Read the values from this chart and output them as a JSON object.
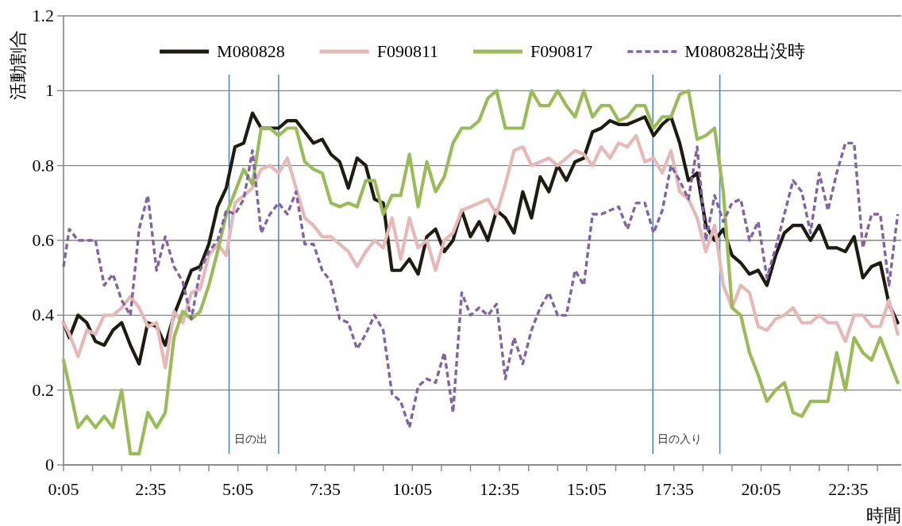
{
  "chart_data": {
    "type": "line",
    "ylabel": "活動割合",
    "xlabel": "時間",
    "grid": "y",
    "legend": "top",
    "marker": "none",
    "xlim": [
      0.0833,
      24.1
    ],
    "ylim": [
      0,
      1.2
    ],
    "yticks": [
      0,
      0.2,
      0.4,
      0.6,
      0.8,
      1,
      1.2
    ],
    "xticks": [
      {
        "value": 0.0833,
        "label": "0:05"
      },
      {
        "value": 0.9167,
        "label": null
      },
      {
        "value": 1.75,
        "label": null
      },
      {
        "value": 2.5833,
        "label": "2:35"
      },
      {
        "value": 3.4167,
        "label": null
      },
      {
        "value": 4.25,
        "label": null
      },
      {
        "value": 5.0833,
        "label": "5:05"
      },
      {
        "value": 5.9167,
        "label": null
      },
      {
        "value": 6.75,
        "label": null
      },
      {
        "value": 7.5833,
        "label": "7:35"
      },
      {
        "value": 8.4167,
        "label": null
      },
      {
        "value": 9.25,
        "label": null
      },
      {
        "value": 10.0833,
        "label": "10:05"
      },
      {
        "value": 10.9167,
        "label": null
      },
      {
        "value": 11.75,
        "label": null
      },
      {
        "value": 12.5833,
        "label": "12:35"
      },
      {
        "value": 13.4167,
        "label": null
      },
      {
        "value": 14.25,
        "label": null
      },
      {
        "value": 15.0833,
        "label": "15:05"
      },
      {
        "value": 15.9167,
        "label": null
      },
      {
        "value": 16.75,
        "label": null
      },
      {
        "value": 17.5833,
        "label": "17:35"
      },
      {
        "value": 18.4167,
        "label": null
      },
      {
        "value": 19.25,
        "label": null
      },
      {
        "value": 20.0833,
        "label": "20:05"
      },
      {
        "value": 20.9167,
        "label": null
      },
      {
        "value": 21.75,
        "label": null
      },
      {
        "value": 22.5833,
        "label": "22:35"
      },
      {
        "value": 23.4167,
        "label": null
      }
    ],
    "x": [
      0.0833,
      0.25,
      0.5,
      0.75,
      1,
      1.25,
      1.5,
      1.75,
      2,
      2.25,
      2.5,
      2.75,
      3,
      3.25,
      3.5,
      3.75,
      4,
      4.25,
      4.5,
      4.75,
      5,
      5.25,
      5.5,
      5.75,
      6,
      6.25,
      6.5,
      6.75,
      7,
      7.25,
      7.5,
      7.75,
      8,
      8.25,
      8.5,
      8.75,
      9,
      9.25,
      9.5,
      9.75,
      10,
      10.25,
      10.5,
      10.75,
      11,
      11.25,
      11.5,
      11.75,
      12,
      12.25,
      12.5,
      12.75,
      13,
      13.25,
      13.5,
      13.75,
      14,
      14.25,
      14.5,
      14.75,
      15,
      15.25,
      15.5,
      15.75,
      16,
      16.25,
      16.5,
      16.75,
      17,
      17.25,
      17.5,
      17.75,
      18,
      18.25,
      18.5,
      18.75,
      19,
      19.25,
      19.5,
      19.75,
      20,
      20.25,
      20.5,
      20.75,
      21,
      21.25,
      21.5,
      21.75,
      22,
      22.25,
      22.5,
      22.75,
      23,
      23.25,
      23.5,
      23.75,
      24
    ],
    "series": [
      {
        "name": "M080828",
        "color": "#1e1b10",
        "values": [
          0.38,
          0.34,
          0.4,
          0.38,
          0.33,
          0.32,
          0.36,
          0.38,
          0.32,
          0.27,
          0.38,
          0.37,
          0.32,
          0.4,
          0.46,
          0.52,
          0.53,
          0.59,
          0.69,
          0.74,
          0.85,
          0.86,
          0.94,
          0.9,
          0.9,
          0.9,
          0.92,
          0.92,
          0.89,
          0.86,
          0.87,
          0.83,
          0.81,
          0.74,
          0.82,
          0.8,
          0.71,
          0.7,
          0.52,
          0.52,
          0.55,
          0.51,
          0.61,
          0.63,
          0.57,
          0.6,
          0.68,
          0.61,
          0.65,
          0.6,
          0.68,
          0.66,
          0.62,
          0.73,
          0.66,
          0.77,
          0.73,
          0.8,
          0.76,
          0.81,
          0.82,
          0.89,
          0.9,
          0.92,
          0.91,
          0.91,
          0.92,
          0.93,
          0.88,
          0.91,
          0.93,
          0.86,
          0.76,
          0.78,
          0.64,
          0.6,
          0.63,
          0.56,
          0.54,
          0.51,
          0.52,
          0.48,
          0.56,
          0.62,
          0.64,
          0.64,
          0.6,
          0.64,
          0.58,
          0.58,
          0.57,
          0.61,
          0.5,
          0.53,
          0.54,
          0.43,
          0.38
        ]
      },
      {
        "name": "F090811",
        "color": "#e6b8b7",
        "values": [
          0.38,
          0.35,
          0.29,
          0.36,
          0.35,
          0.4,
          0.4,
          0.42,
          0.45,
          0.42,
          0.37,
          0.38,
          0.26,
          0.41,
          0.38,
          0.46,
          0.47,
          0.56,
          0.59,
          0.56,
          0.7,
          0.72,
          0.74,
          0.79,
          0.8,
          0.78,
          0.82,
          0.74,
          0.66,
          0.64,
          0.61,
          0.61,
          0.59,
          0.57,
          0.53,
          0.57,
          0.6,
          0.58,
          0.66,
          0.55,
          0.66,
          0.58,
          0.6,
          0.52,
          0.6,
          0.62,
          0.68,
          0.69,
          0.7,
          0.71,
          0.67,
          0.75,
          0.84,
          0.85,
          0.8,
          0.81,
          0.82,
          0.8,
          0.82,
          0.84,
          0.83,
          0.8,
          0.85,
          0.82,
          0.86,
          0.85,
          0.88,
          0.81,
          0.82,
          0.78,
          0.84,
          0.73,
          0.71,
          0.66,
          0.57,
          0.64,
          0.48,
          0.42,
          0.48,
          0.46,
          0.37,
          0.36,
          0.39,
          0.4,
          0.42,
          0.38,
          0.38,
          0.4,
          0.38,
          0.38,
          0.33,
          0.4,
          0.4,
          0.37,
          0.37,
          0.44,
          0.35
        ]
      },
      {
        "name": "F090817",
        "color": "#9bbb59",
        "values": [
          0.28,
          0.21,
          0.1,
          0.13,
          0.1,
          0.13,
          0.1,
          0.2,
          0.03,
          0.03,
          0.14,
          0.1,
          0.14,
          0.34,
          0.41,
          0.39,
          0.41,
          0.48,
          0.57,
          0.67,
          0.73,
          0.79,
          0.75,
          0.9,
          0.9,
          0.88,
          0.9,
          0.9,
          0.81,
          0.79,
          0.78,
          0.7,
          0.69,
          0.7,
          0.69,
          0.76,
          0.76,
          0.67,
          0.72,
          0.72,
          0.83,
          0.69,
          0.81,
          0.73,
          0.77,
          0.86,
          0.9,
          0.9,
          0.92,
          0.98,
          1.0,
          0.9,
          0.9,
          0.9,
          1.0,
          0.96,
          0.96,
          1.0,
          0.96,
          0.93,
          1.0,
          0.93,
          0.96,
          0.96,
          0.92,
          0.93,
          0.96,
          0.96,
          0.9,
          0.93,
          0.93,
          0.99,
          1.0,
          0.87,
          0.88,
          0.9,
          0.73,
          0.42,
          0.4,
          0.3,
          0.24,
          0.17,
          0.2,
          0.22,
          0.14,
          0.13,
          0.17,
          0.17,
          0.17,
          0.3,
          0.2,
          0.34,
          0.3,
          0.28,
          0.34,
          0.28,
          0.22
        ]
      },
      {
        "name": "M080828出没時",
        "color": "#8064a2",
        "line_style": "dashed",
        "values": [
          0.53,
          0.63,
          0.6,
          0.6,
          0.6,
          0.48,
          0.51,
          0.44,
          0.4,
          0.63,
          0.72,
          0.52,
          0.61,
          0.53,
          0.49,
          0.39,
          0.52,
          0.57,
          0.6,
          0.68,
          0.67,
          0.71,
          0.84,
          0.62,
          0.67,
          0.7,
          0.67,
          0.73,
          0.59,
          0.59,
          0.52,
          0.49,
          0.39,
          0.38,
          0.31,
          0.35,
          0.4,
          0.36,
          0.19,
          0.17,
          0.1,
          0.21,
          0.23,
          0.22,
          0.3,
          0.14,
          0.46,
          0.4,
          0.42,
          0.4,
          0.43,
          0.23,
          0.34,
          0.27,
          0.36,
          0.42,
          0.46,
          0.4,
          0.4,
          0.52,
          0.48,
          0.67,
          0.67,
          0.68,
          0.69,
          0.63,
          0.7,
          0.7,
          0.62,
          0.68,
          0.8,
          0.76,
          0.71,
          0.85,
          0.6,
          0.72,
          0.65,
          0.7,
          0.71,
          0.6,
          0.65,
          0.5,
          0.58,
          0.67,
          0.76,
          0.73,
          0.62,
          0.78,
          0.68,
          0.78,
          0.86,
          0.86,
          0.58,
          0.67,
          0.67,
          0.48,
          0.67
        ]
      }
    ],
    "ref_lines": [
      {
        "axis": "x",
        "value": 4.83,
        "label": "日の出",
        "color": "#4f81bd"
      },
      {
        "axis": "x",
        "value": 6.25,
        "color": "#4f81bd"
      },
      {
        "axis": "x",
        "value": 16.98,
        "label": "日の入り",
        "color": "#4f81bd"
      },
      {
        "axis": "x",
        "value": 18.9,
        "color": "#4f81bd"
      }
    ]
  }
}
